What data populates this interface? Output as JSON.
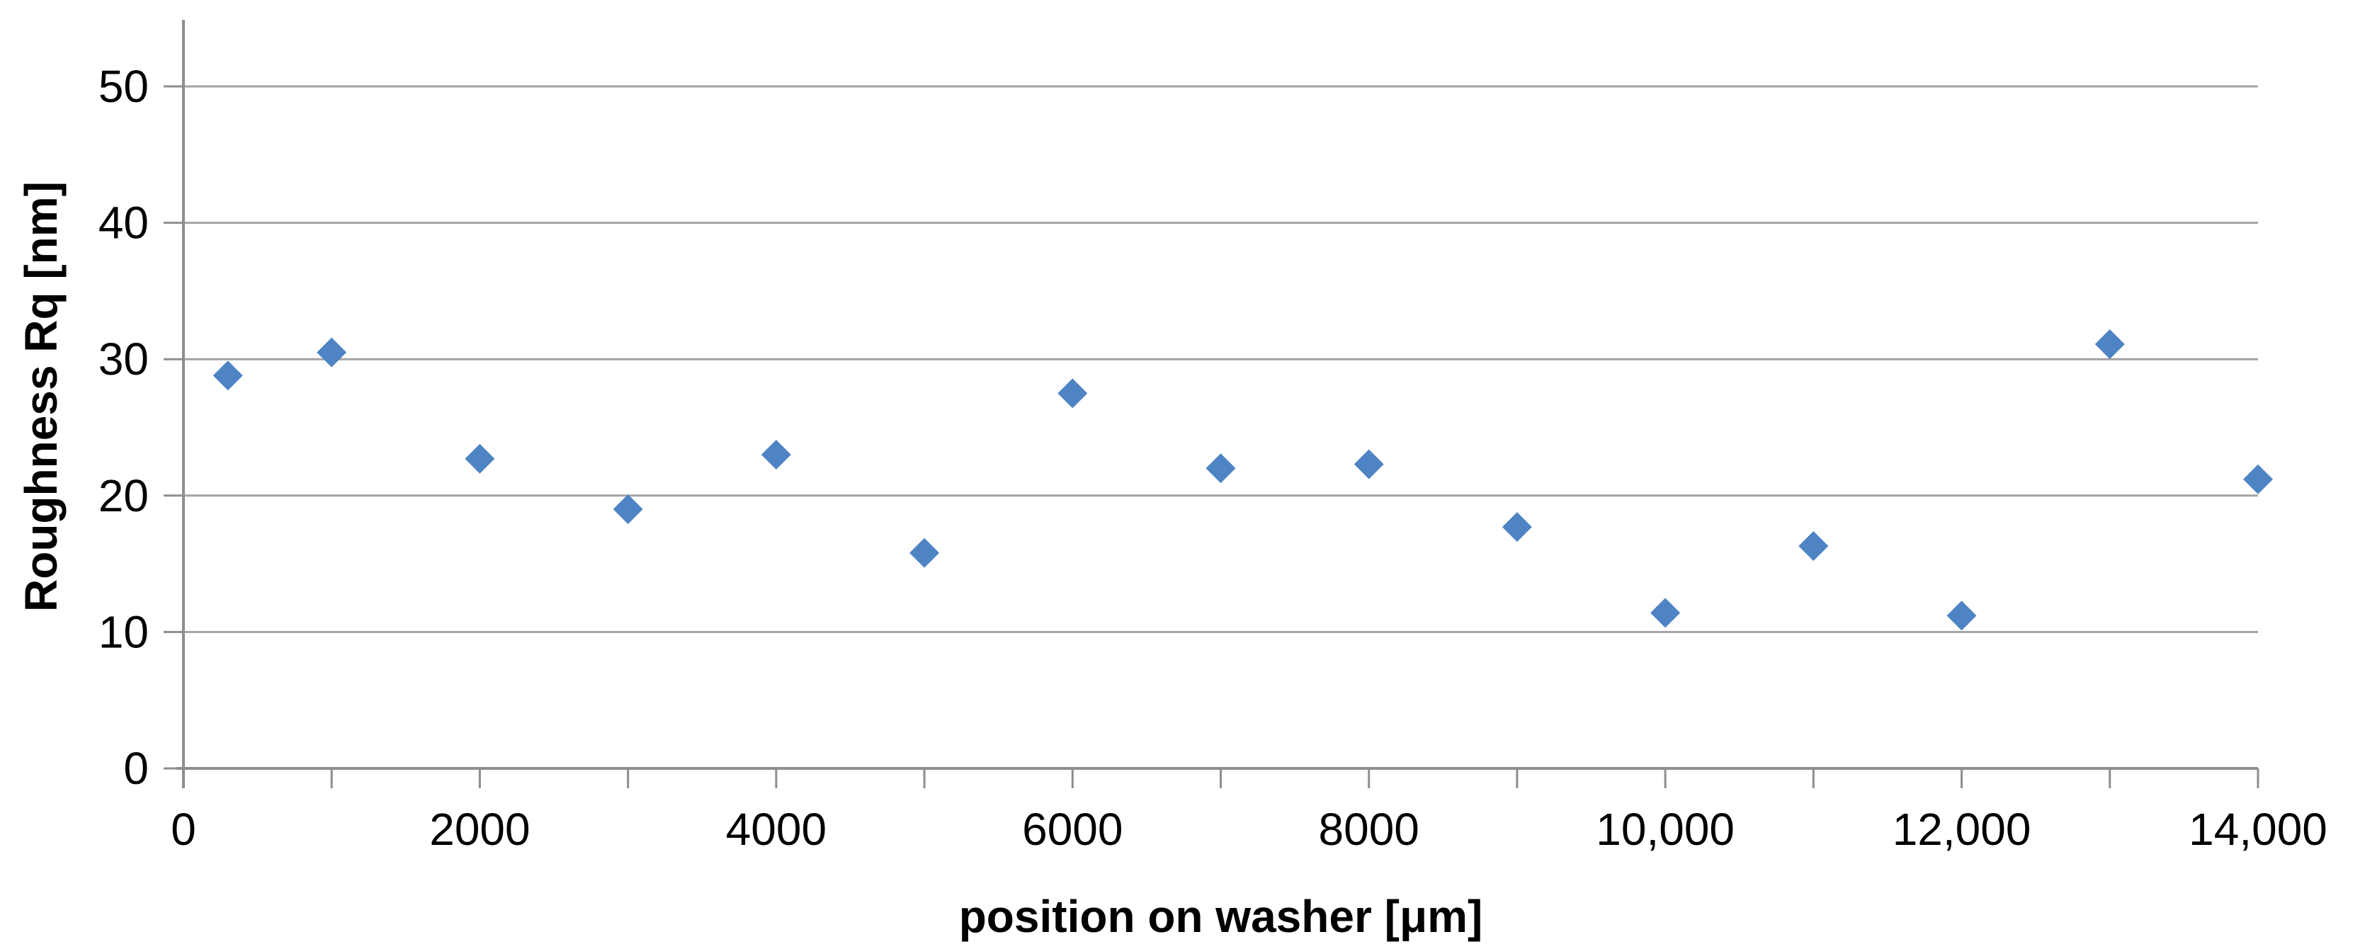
{
  "chart_data": {
    "type": "scatter",
    "title": "",
    "xlabel": "position on washer [μm]",
    "ylabel": "Roughness Rq [nm]",
    "xlim": [
      0,
      14000
    ],
    "ylim": [
      0,
      50
    ],
    "grid": "horizontal-only",
    "legend": "none",
    "marker": "diamond",
    "x_tick_values": [
      0,
      2000,
      4000,
      6000,
      8000,
      10000,
      12000,
      14000
    ],
    "x_tick_labels": [
      "0",
      "2000",
      "4000",
      "6000",
      "8000",
      "10,000",
      "12,000",
      "14,000"
    ],
    "x_minor_tick_step": 1000,
    "y_tick_values": [
      0,
      10,
      20,
      30,
      40,
      50
    ],
    "y_tick_labels": [
      "0",
      "10",
      "20",
      "30",
      "40",
      "50"
    ],
    "series": [
      {
        "name": "Roughness Rq",
        "points": [
          [
            300,
            28.8
          ],
          [
            1000,
            30.5
          ],
          [
            2000,
            22.7
          ],
          [
            3000,
            19.0
          ],
          [
            4000,
            23.0
          ],
          [
            5000,
            15.8
          ],
          [
            6000,
            27.5
          ],
          [
            7000,
            22.0
          ],
          [
            8000,
            22.3
          ],
          [
            9000,
            17.7
          ],
          [
            10000,
            11.4
          ],
          [
            11000,
            16.3
          ],
          [
            12000,
            11.2
          ],
          [
            13000,
            31.1
          ],
          [
            14000,
            21.2
          ]
        ]
      }
    ],
    "colors": {
      "marker": "#4e84c4",
      "gridline": "#a3a3a3",
      "axis": "#8e8e8e",
      "text": "#000000",
      "background": "#ffffff"
    }
  }
}
